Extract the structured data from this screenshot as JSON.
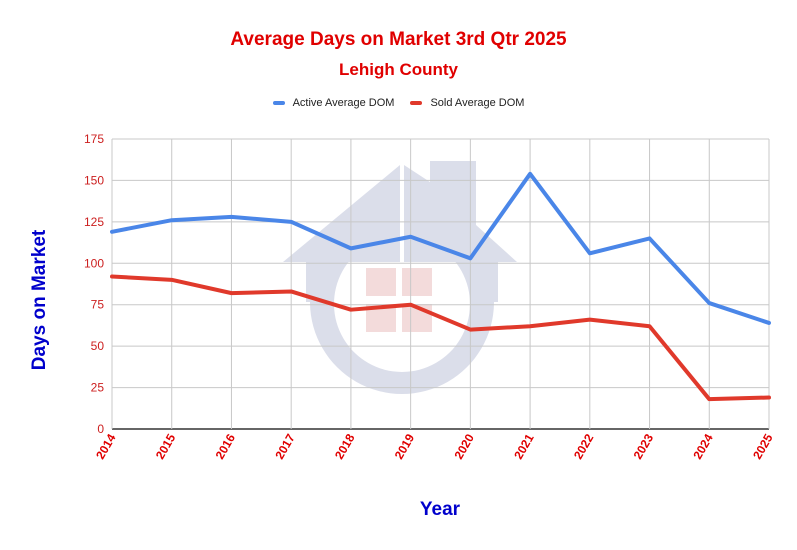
{
  "chart_data": {
    "type": "line",
    "title": "Average Days on Market 3rd Qtr 2025",
    "subtitle": "Lehigh County",
    "xlabel": "Year",
    "ylabel": "Days on Market",
    "categories": [
      "2014",
      "2015",
      "2016",
      "2017",
      "2018",
      "2019",
      "2020",
      "2021",
      "2022",
      "2023",
      "2024",
      "2025"
    ],
    "series": [
      {
        "name": "Active Average DOM",
        "color": "#4a86e8",
        "values": [
          119,
          126,
          128,
          125,
          109,
          116,
          103,
          154,
          106,
          115,
          76,
          64
        ]
      },
      {
        "name": "Sold Average DOM",
        "color": "#e0392b",
        "values": [
          92,
          90,
          82,
          83,
          72,
          75,
          60,
          62,
          66,
          62,
          18,
          19
        ]
      }
    ],
    "ylim": [
      0,
      175
    ],
    "yticks": [
      0,
      25,
      50,
      75,
      100,
      125,
      150,
      175
    ],
    "grid": true,
    "legend_position": "top"
  }
}
